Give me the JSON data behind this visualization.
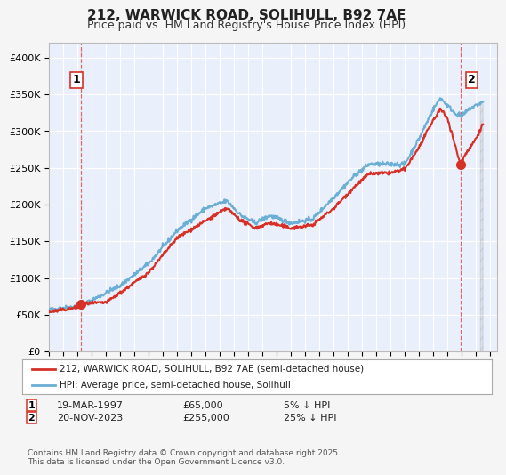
{
  "title": "212, WARWICK ROAD, SOLIHULL, B92 7AE",
  "subtitle": "Price paid vs. HM Land Registry's House Price Index (HPI)",
  "ylabel": "",
  "xlim_start": 1995.0,
  "xlim_end": 2026.5,
  "ylim": [
    0,
    420000
  ],
  "yticks": [
    0,
    50000,
    100000,
    150000,
    200000,
    250000,
    300000,
    350000,
    400000
  ],
  "ytick_labels": [
    "£0",
    "£50K",
    "£100K",
    "£150K",
    "£200K",
    "£250K",
    "£300K",
    "£350K",
    "£400K"
  ],
  "background_color": "#eaf0fb",
  "plot_bg_color": "#eaf0fb",
  "grid_color": "#ffffff",
  "hpi_color": "#6baed6",
  "price_color": "#d73027",
  "marker1_x": 1997.21,
  "marker1_y": 65000,
  "marker2_x": 2023.9,
  "marker2_y": 255000,
  "annotation1_label": "1",
  "annotation1_date": "19-MAR-1997",
  "annotation1_price": "£65,000",
  "annotation1_hpi": "5% ↓ HPI",
  "annotation2_label": "2",
  "annotation2_date": "20-NOV-2023",
  "annotation2_price": "£255,000",
  "annotation2_hpi": "25% ↓ HPI",
  "legend_line1": "212, WARWICK ROAD, SOLIHULL, B92 7AE (semi-detached house)",
  "legend_line2": "HPI: Average price, semi-detached house, Solihull",
  "footer": "Contains HM Land Registry data © Crown copyright and database right 2025.\nThis data is licensed under the Open Government Licence v3.0.",
  "hatch_color": "#cccccc"
}
